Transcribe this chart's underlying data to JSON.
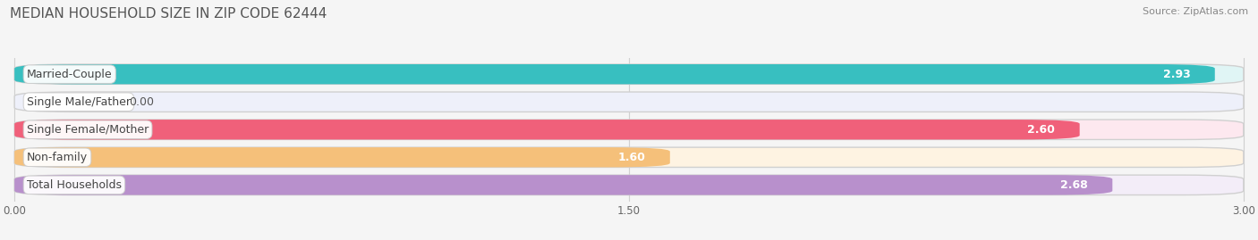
{
  "title": "MEDIAN HOUSEHOLD SIZE IN ZIP CODE 62444",
  "source": "Source: ZipAtlas.com",
  "categories": [
    "Married-Couple",
    "Single Male/Father",
    "Single Female/Mother",
    "Non-family",
    "Total Households"
  ],
  "values": [
    2.93,
    0.0,
    2.6,
    1.6,
    2.68
  ],
  "bar_colors": [
    "#38bfc0",
    "#a0b8e8",
    "#f0607a",
    "#f5c07a",
    "#b890cc"
  ],
  "bar_bg_colors": [
    "#e0f5f5",
    "#eef0fa",
    "#fde8ef",
    "#fef3e2",
    "#f3edf8"
  ],
  "xlim_min": 0.0,
  "xlim_max": 3.0,
  "xticks": [
    0.0,
    1.5,
    3.0
  ],
  "xtick_labels": [
    "0.00",
    "1.50",
    "3.00"
  ],
  "title_fontsize": 11,
  "source_fontsize": 8,
  "label_fontsize": 9,
  "value_fontsize": 9,
  "background_color": "#f5f5f5",
  "bar_height": 0.72,
  "bar_gap": 0.28
}
